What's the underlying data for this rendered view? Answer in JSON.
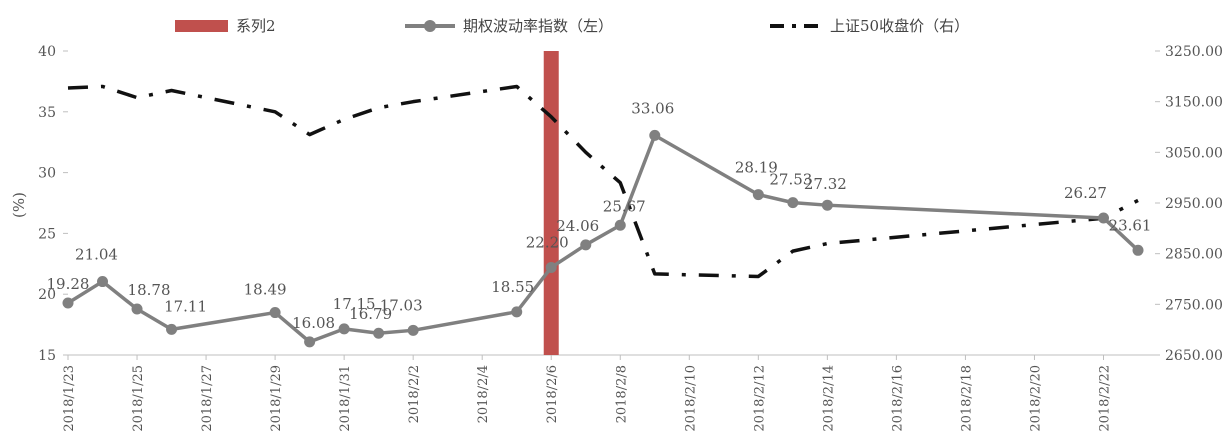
{
  "chart_data": {
    "type": "line",
    "ylabel_left": "(%)",
    "y_left_range": [
      15,
      40
    ],
    "y_left_ticks": [
      "15",
      "20",
      "25",
      "30",
      "35",
      "40"
    ],
    "y_right_range": [
      2650,
      3250
    ],
    "y_right_ticks": [
      "2650.00",
      "2750.00",
      "2850.00",
      "2950.00",
      "3050.00",
      "3150.00",
      "3250.00"
    ],
    "x_range": [
      "2018/1/23",
      "2018/2/23"
    ],
    "x_ticks": [
      "2018/1/23",
      "2018/1/25",
      "2018/1/27",
      "2018/1/29",
      "2018/1/31",
      "2018/2/2",
      "2018/2/4",
      "2018/2/6",
      "2018/2/8",
      "2018/2/10",
      "2018/2/12",
      "2018/2/14",
      "2018/2/16",
      "2018/2/18",
      "2018/2/20",
      "2018/2/22"
    ],
    "legend_position": "top",
    "series": [
      {
        "name": "系列2",
        "kind": "bar",
        "color": "#c0504d",
        "x": [
          "2018/2/6"
        ],
        "values": [
          40
        ]
      },
      {
        "name": "期权波动率指数（左）",
        "kind": "line-markers",
        "axis": "left",
        "color": "#808080",
        "x": [
          "2018/1/23",
          "2018/1/24",
          "2018/1/25",
          "2018/1/26",
          "2018/1/29",
          "2018/1/30",
          "2018/1/31",
          "2018/2/1",
          "2018/2/2",
          "2018/2/5",
          "2018/2/6",
          "2018/2/7",
          "2018/2/8",
          "2018/2/9",
          "2018/2/12",
          "2018/2/13",
          "2018/2/14",
          "2018/2/22",
          "2018/2/23"
        ],
        "values": [
          19.28,
          21.04,
          18.78,
          17.11,
          18.49,
          16.08,
          17.15,
          16.79,
          17.03,
          18.55,
          22.2,
          24.06,
          25.67,
          33.06,
          28.19,
          27.53,
          27.32,
          26.27,
          23.61
        ],
        "labels": [
          "19.28",
          "21.04",
          "18.78",
          "17.11",
          "18.49",
          "16.08",
          "17.15",
          "16.79",
          "17.03",
          "18.55",
          "22.20",
          "24.06",
          "25.67",
          "33.06",
          "28.19",
          "27.53",
          "27.32",
          "26.27",
          "23.61"
        ]
      },
      {
        "name": "上证50收盘价（右）",
        "kind": "dash-dot",
        "axis": "right",
        "color": "#111111",
        "x": [
          "2018/1/23",
          "2018/1/24",
          "2018/1/25",
          "2018/1/26",
          "2018/1/29",
          "2018/1/30",
          "2018/1/31",
          "2018/2/1",
          "2018/2/2",
          "2018/2/5",
          "2018/2/6",
          "2018/2/7",
          "2018/2/8",
          "2018/2/9",
          "2018/2/12",
          "2018/2/13",
          "2018/2/14",
          "2018/2/22",
          "2018/2/23"
        ],
        "values": [
          3177,
          3180,
          3158,
          3172,
          3130,
          3085,
          3115,
          3138,
          3150,
          3180,
          3120,
          3050,
          2990,
          2810,
          2805,
          2855,
          2870,
          2920,
          2955
        ]
      }
    ]
  }
}
